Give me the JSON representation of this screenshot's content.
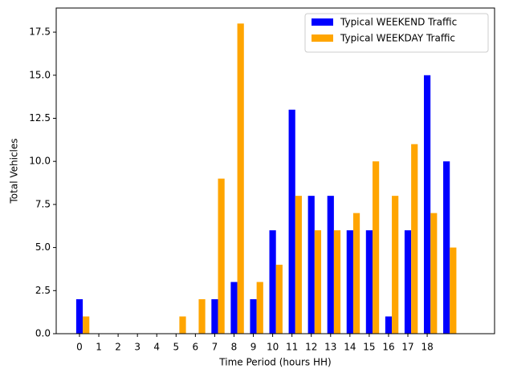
{
  "chart_data": {
    "type": "bar",
    "xlabel": "Time Period (hours HH)",
    "ylabel": "Total Vehicles",
    "categories": [
      "0",
      "1",
      "2",
      "3",
      "4",
      "5",
      "6",
      "7",
      "8",
      "9",
      "10",
      "11",
      "12",
      "13",
      "14",
      "15",
      "16",
      "17",
      "18",
      null
    ],
    "series": [
      {
        "name": "Typical WEEKEND Traffic",
        "color": "#0000ff",
        "values": [
          2,
          0,
          0,
          0,
          0,
          0,
          0,
          2,
          3,
          2,
          6,
          13,
          8,
          8,
          6,
          6,
          1,
          6,
          15,
          10
        ]
      },
      {
        "name": "Typical WEEKDAY Traffic",
        "color": "#ffa500",
        "values": [
          1,
          0,
          0,
          0,
          0,
          1,
          2,
          9,
          18,
          3,
          4,
          8,
          6,
          6,
          7,
          10,
          8,
          11,
          7,
          5
        ]
      }
    ],
    "ylim": [
      0,
      18.9
    ],
    "yticks": [
      {
        "value": 0,
        "label": "0.0"
      },
      2.5,
      {
        "value": 5,
        "label": "5.0"
      },
      7.5,
      {
        "value": 10,
        "label": "10.0"
      },
      12.5,
      {
        "value": 15,
        "label": "15.0"
      },
      17.5
    ],
    "legend": "upper right"
  }
}
